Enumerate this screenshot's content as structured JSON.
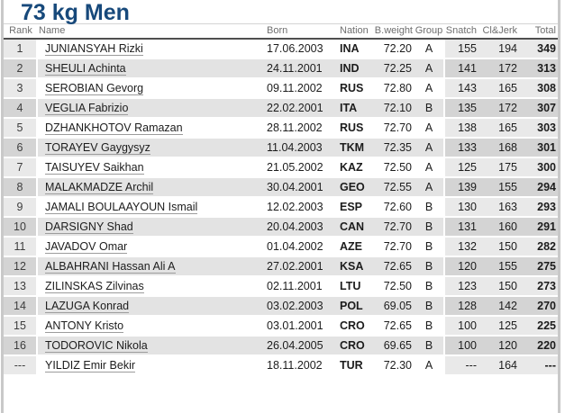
{
  "accent_color": "#17497b",
  "title": "73 kg Men",
  "table": {
    "columns": [
      "Rank",
      "Name",
      "Born",
      "Nation",
      "B.weight",
      "Group",
      "Snatch",
      "Cl&Jerk",
      "Total"
    ],
    "rows": [
      {
        "rank": "1",
        "name": "JUNIANSYAH Rizki",
        "born": "17.06.2003",
        "nation": "INA",
        "bweight": "72.20",
        "group": "A",
        "snatch": "155",
        "cljerk": "194",
        "total": "349"
      },
      {
        "rank": "2",
        "name": "SHEULI Achinta",
        "born": "24.11.2001",
        "nation": "IND",
        "bweight": "72.25",
        "group": "A",
        "snatch": "141",
        "cljerk": "172",
        "total": "313"
      },
      {
        "rank": "3",
        "name": "SEROBIAN Gevorg",
        "born": "09.11.2002",
        "nation": "RUS",
        "bweight": "72.80",
        "group": "A",
        "snatch": "143",
        "cljerk": "165",
        "total": "308"
      },
      {
        "rank": "4",
        "name": "VEGLIA Fabrizio",
        "born": "22.02.2001",
        "nation": "ITA",
        "bweight": "72.10",
        "group": "B",
        "snatch": "135",
        "cljerk": "172",
        "total": "307"
      },
      {
        "rank": "5",
        "name": "DZHANKHOTOV Ramazan",
        "born": "28.11.2002",
        "nation": "RUS",
        "bweight": "72.70",
        "group": "A",
        "snatch": "138",
        "cljerk": "165",
        "total": "303"
      },
      {
        "rank": "6",
        "name": "TORAYEV Gaygysyz",
        "born": "11.04.2003",
        "nation": "TKM",
        "bweight": "72.35",
        "group": "A",
        "snatch": "133",
        "cljerk": "168",
        "total": "301"
      },
      {
        "rank": "7",
        "name": "TAISUYEV Saikhan",
        "born": "21.05.2002",
        "nation": "KAZ",
        "bweight": "72.50",
        "group": "A",
        "snatch": "125",
        "cljerk": "175",
        "total": "300"
      },
      {
        "rank": "8",
        "name": "MALAKMADZE Archil",
        "born": "30.04.2001",
        "nation": "GEO",
        "bweight": "72.55",
        "group": "A",
        "snatch": "139",
        "cljerk": "155",
        "total": "294"
      },
      {
        "rank": "9",
        "name": "JAMALI BOULAAYOUN Ismail",
        "born": "12.02.2003",
        "nation": "ESP",
        "bweight": "72.60",
        "group": "B",
        "snatch": "130",
        "cljerk": "163",
        "total": "293"
      },
      {
        "rank": "10",
        "name": "DARSIGNY Shad",
        "born": "20.04.2003",
        "nation": "CAN",
        "bweight": "72.70",
        "group": "B",
        "snatch": "131",
        "cljerk": "160",
        "total": "291"
      },
      {
        "rank": "11",
        "name": "JAVADOV Omar",
        "born": "01.04.2002",
        "nation": "AZE",
        "bweight": "72.70",
        "group": "B",
        "snatch": "132",
        "cljerk": "150",
        "total": "282"
      },
      {
        "rank": "12",
        "name": "ALBAHRANI Hassan Ali A",
        "born": "27.02.2001",
        "nation": "KSA",
        "bweight": "72.65",
        "group": "B",
        "snatch": "120",
        "cljerk": "155",
        "total": "275"
      },
      {
        "rank": "13",
        "name": "ZILINSKAS Zilvinas",
        "born": "02.11.2001",
        "nation": "LTU",
        "bweight": "72.50",
        "group": "B",
        "snatch": "123",
        "cljerk": "150",
        "total": "273"
      },
      {
        "rank": "14",
        "name": "LAZUGA Konrad",
        "born": "03.02.2003",
        "nation": "POL",
        "bweight": "69.05",
        "group": "B",
        "snatch": "128",
        "cljerk": "142",
        "total": "270"
      },
      {
        "rank": "15",
        "name": "ANTONY Kristo",
        "born": "03.01.2001",
        "nation": "CRO",
        "bweight": "72.65",
        "group": "B",
        "snatch": "100",
        "cljerk": "125",
        "total": "225"
      },
      {
        "rank": "16",
        "name": "TODOROVIC Nikola",
        "born": "26.04.2005",
        "nation": "CRO",
        "bweight": "69.65",
        "group": "B",
        "snatch": "100",
        "cljerk": "120",
        "total": "220"
      },
      {
        "rank": "---",
        "name": "YILDIZ Emir Bekir",
        "born": "18.11.2002",
        "nation": "TUR",
        "bweight": "72.30",
        "group": "A",
        "snatch": "---",
        "cljerk": "164",
        "total": "---"
      }
    ]
  }
}
